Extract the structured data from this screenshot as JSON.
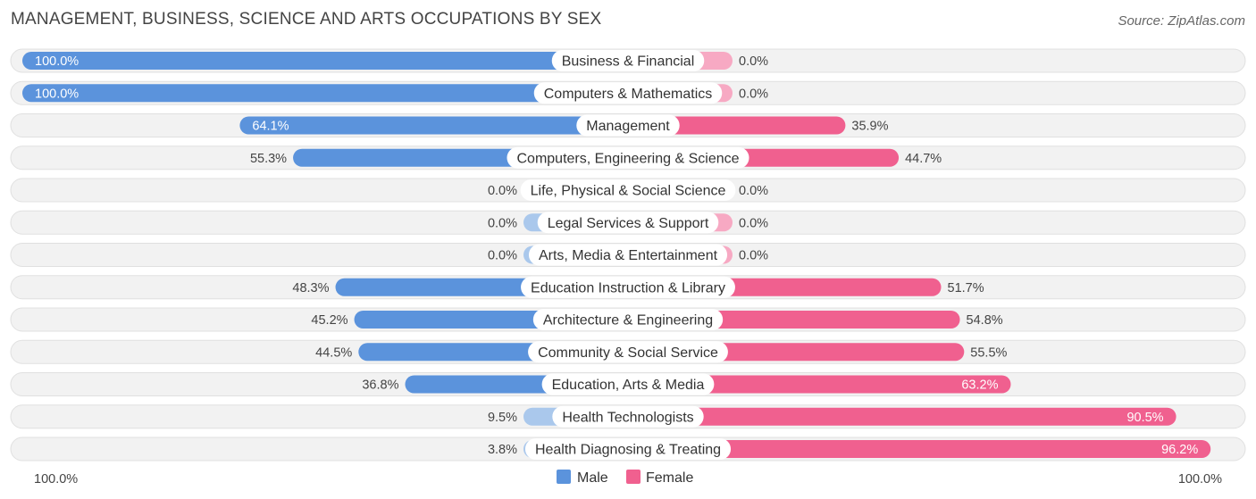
{
  "title": "MANAGEMENT, BUSINESS, SCIENCE AND ARTS OCCUPATIONS BY SEX",
  "source": "Source: ZipAtlas.com",
  "chart_data": {
    "type": "bar",
    "orientation": "horizontal-diverging",
    "categories": [
      "Business & Financial",
      "Computers & Mathematics",
      "Management",
      "Computers, Engineering & Science",
      "Life, Physical & Social Science",
      "Legal Services & Support",
      "Arts, Media & Entertainment",
      "Education Instruction & Library",
      "Architecture & Engineering",
      "Community & Social Service",
      "Education, Arts & Media",
      "Health Technologists",
      "Health Diagnosing & Treating"
    ],
    "series": [
      {
        "name": "Male",
        "color": "#6a9fe0",
        "values": [
          100.0,
          100.0,
          64.1,
          55.3,
          0.0,
          0.0,
          0.0,
          48.3,
          45.2,
          44.5,
          36.8,
          9.5,
          3.8
        ],
        "labels": [
          "100.0%",
          "100.0%",
          "64.1%",
          "55.3%",
          "0.0%",
          "0.0%",
          "0.0%",
          "48.3%",
          "45.2%",
          "44.5%",
          "36.8%",
          "9.5%",
          "3.8%"
        ]
      },
      {
        "name": "Female",
        "color": "#f06b98",
        "values": [
          0.0,
          0.0,
          35.9,
          44.7,
          0.0,
          0.0,
          0.0,
          51.7,
          54.8,
          55.5,
          63.2,
          90.5,
          96.2
        ],
        "labels": [
          "0.0%",
          "0.0%",
          "35.9%",
          "44.7%",
          "0.0%",
          "0.0%",
          "0.0%",
          "51.7%",
          "54.8%",
          "55.5%",
          "63.2%",
          "90.5%",
          "96.2%"
        ]
      }
    ],
    "axis_left_label": "100.0%",
    "axis_right_label": "100.0%",
    "xlim": [
      -100,
      100
    ],
    "legend": {
      "position": "bottom-center",
      "items": [
        "Male",
        "Female"
      ]
    },
    "colors": {
      "male_strong": "#5b93dc",
      "male_light": "#aac8ec",
      "female_strong": "#f0608f",
      "female_light": "#f7a9c3",
      "track": "#f2f2f2"
    }
  }
}
